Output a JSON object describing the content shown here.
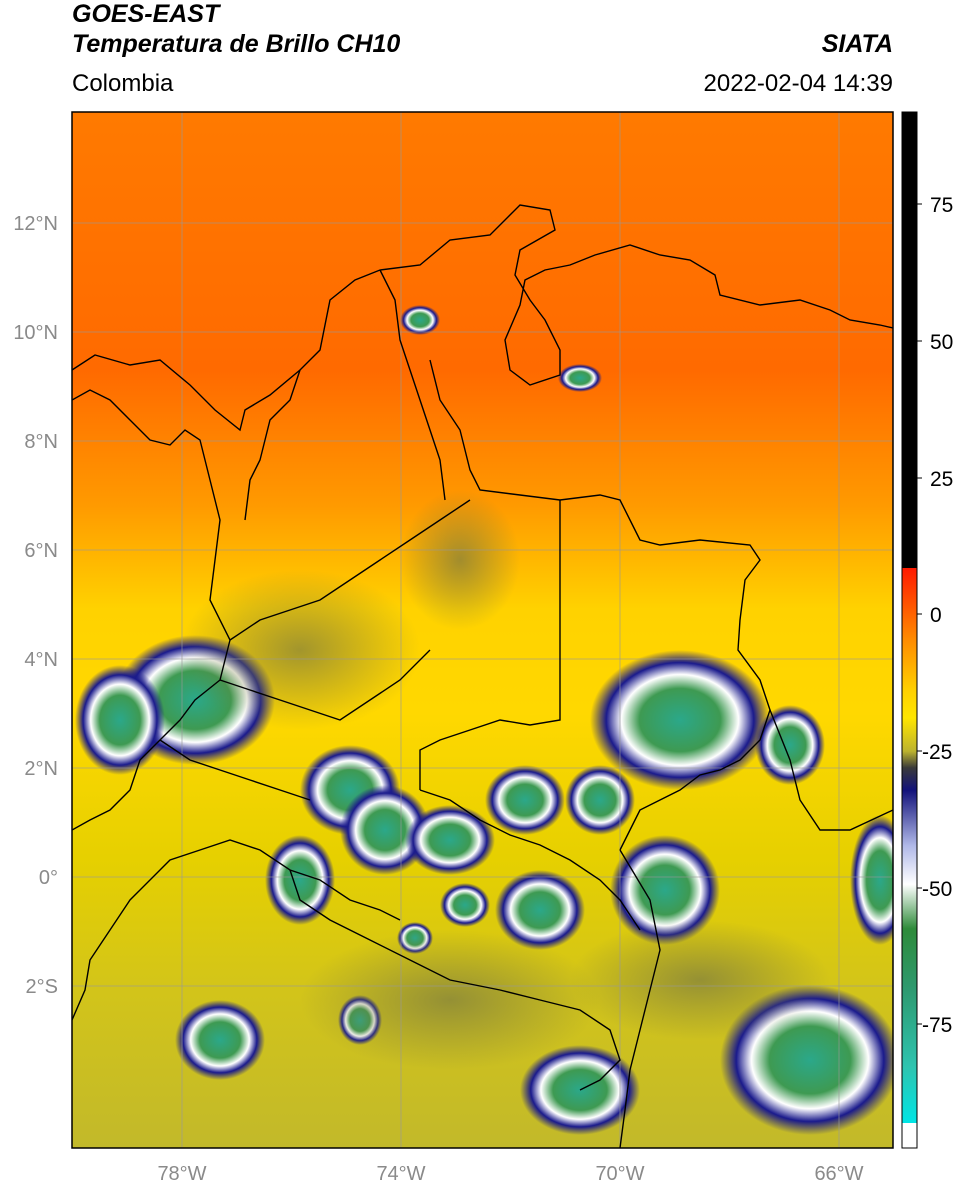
{
  "header": {
    "title_line1": "GOES-EAST",
    "title_line2": "Temperatura de Brillo CH10",
    "organization": "SIATA",
    "region": "Colombia",
    "datetime": "2022-02-04 14:39"
  },
  "map": {
    "lon_ticks": [
      "78°W",
      "74°W",
      "70°W",
      "66°W"
    ],
    "lat_ticks": [
      "12°N",
      "10°N",
      "8°N",
      "6°N",
      "4°N",
      "2°N",
      "0°",
      "2°S"
    ]
  },
  "colorbar": {
    "tick_labels": [
      "75",
      "50",
      "25",
      "0",
      "-25",
      "-50",
      "-75"
    ],
    "colors": {
      "top": "#000000",
      "warm": "#ff1a00",
      "orange": "#ff8c00",
      "yellow": "#ffe600",
      "olive": "#bcb32e",
      "navy": "#12127a",
      "white": "#ffffff",
      "green": "#2e8b3a",
      "teal": "#2ec4b0",
      "cyan": "#00e5e5"
    }
  }
}
